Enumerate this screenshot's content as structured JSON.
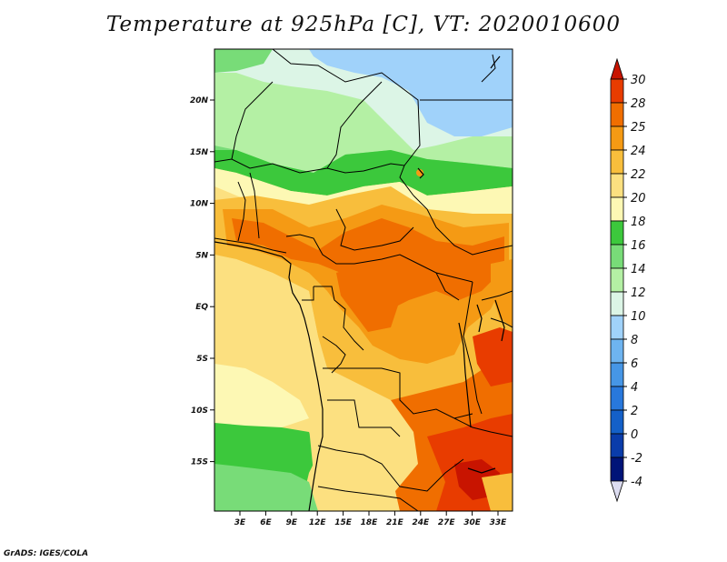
{
  "title": "Temperature at 925hPa [C], VT: 2020010600",
  "credit": "GrADS: IGES/COLA",
  "map": {
    "lon_labels": [
      "3E",
      "6E",
      "9E",
      "12E",
      "15E",
      "18E",
      "21E",
      "24E",
      "27E",
      "30E",
      "33E"
    ],
    "lat_labels": [
      "20N",
      "15N",
      "10N",
      "5N",
      "EQ",
      "5S",
      "10S",
      "15S"
    ]
  },
  "colorbar": {
    "labels": [
      "30",
      "28",
      "25",
      "24",
      "22",
      "20",
      "18",
      "16",
      "14",
      "12",
      "10",
      "8",
      "6",
      "4",
      "2",
      "0",
      "-2",
      "-4"
    ],
    "colors": [
      "#c81400",
      "#e83c00",
      "#f06e00",
      "#f59a14",
      "#f8be3c",
      "#fce080",
      "#fdf8b4",
      "#3cc83c",
      "#78dc78",
      "#b4f0a4",
      "#dcf5e6",
      "#a0d2fa",
      "#6eb4f0",
      "#4696e6",
      "#2878dc",
      "#1460c8",
      "#0a3caa",
      "#001478"
    ],
    "top_color": "#c81400",
    "bottom_color": "#dcdcf0"
  }
}
